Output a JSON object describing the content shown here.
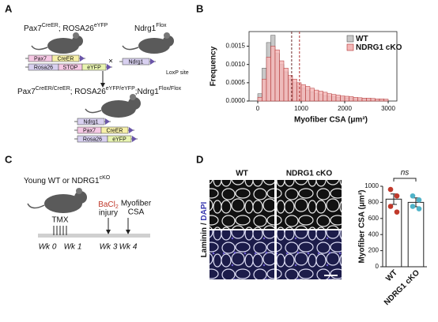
{
  "panel_letters": [
    "A",
    "B",
    "C",
    "D"
  ],
  "panel_a": {
    "genotype_1": [
      "Pax7",
      "CreER",
      "; ROSA26",
      "eYFP"
    ],
    "genotype_2": [
      "Ndrg1",
      "Flox"
    ],
    "cross": "×",
    "loxp": "LoxP site",
    "genotype_3": [
      "Pax7",
      "CreER/CreER",
      "; ROSA26",
      "eYFP/eYFP",
      ";Ndrg1",
      "Flox/Flox"
    ],
    "constructs": [
      [
        [
          {
            "label": "Pax7",
            "color": "#f6c8e4"
          },
          {
            "label": "CreER",
            "color": "#f7f0a8"
          }
        ],
        [
          {
            "label": "Rosa26",
            "color": "#d8d0f0"
          },
          {
            "label": "STOP",
            "color": "#f6c8e4"
          },
          {
            "label": "eYFP",
            "color": "#e8f4b0"
          }
        ]
      ],
      [
        [
          {
            "label": "Ndrg1",
            "color": "#d8d0f0"
          }
        ]
      ],
      [
        [
          {
            "label": "Ndrg1",
            "color": "#d8d0f0"
          }
        ],
        [
          {
            "label": "Pax7",
            "color": "#f6c8e4"
          },
          {
            "label": "CreER",
            "color": "#f7f0a8"
          }
        ],
        [
          {
            "label": "Rosa26",
            "color": "#d8d0f0"
          },
          {
            "label": "eYFP",
            "color": "#e8f4b0"
          }
        ]
      ]
    ]
  },
  "panel_c": {
    "subject": [
      "Young WT or NDRG1",
      "cKO"
    ],
    "tmx": "TMX",
    "bacl": [
      "BaCl",
      "2"
    ],
    "injury": "injury",
    "readout_1": "Myofiber",
    "readout_2": "CSA",
    "weeks": [
      "Wk 0",
      "Wk 1",
      "Wk 3",
      "Wk 4"
    ]
  },
  "panel_d": {
    "columns": [
      "WT",
      "NDRG1 cKO"
    ],
    "stain": [
      "Laminin / ",
      "DAPI"
    ]
  },
  "chart_data": [
    {
      "type": "histogram",
      "xlabel": "Myofiber CSA (μm²)",
      "ylabel": "Frequency",
      "bins": [
        0,
        100,
        200,
        300,
        400,
        500,
        600,
        700,
        800,
        900,
        1000,
        1100,
        1200,
        1300,
        1400,
        1500,
        1600,
        1700,
        1800,
        1900,
        2000,
        2100,
        2200,
        2300,
        2400,
        2500,
        2600,
        2700,
        2800,
        2900,
        3000
      ],
      "series": [
        {
          "name": "WT",
          "color": "#c8c8c8",
          "edge": "#555555",
          "values": [
            0.0002,
            0.0009,
            0.0016,
            0.0018,
            0.0013,
            0.001,
            0.0008,
            0.0006,
            0.0005,
            0.0004,
            0.00035,
            0.0003,
            0.00025,
            0.0002,
            0.00018,
            0.00015,
            0.00013,
            0.00012,
            0.0001,
            9e-05,
            8e-05,
            7e-05,
            6e-05,
            5e-05,
            5e-05,
            4e-05,
            4e-05,
            3e-05,
            3e-05,
            3e-05
          ]
        },
        {
          "name": "NDRG1 cKO",
          "color": "#f4b8b8",
          "edge": "#b03030",
          "values": [
            0.0001,
            0.0006,
            0.0012,
            0.0015,
            0.0014,
            0.0011,
            0.0009,
            0.0007,
            0.0006,
            0.0005,
            0.00045,
            0.0004,
            0.00035,
            0.0003,
            0.00027,
            0.00024,
            0.0002,
            0.00018,
            0.00016,
            0.00014,
            0.00013,
            0.00012,
            0.0001,
            9e-05,
            8e-05,
            8e-05,
            7e-05,
            6e-05,
            6e-05,
            5e-05
          ]
        }
      ],
      "vlines": [
        {
          "value": 780,
          "color": "#6b2a2a"
        },
        {
          "value": 960,
          "color": "#b03030"
        }
      ],
      "xlim": [
        -200,
        3200
      ],
      "ylim": [
        0,
        0.0019
      ],
      "xticks": [
        0,
        1000,
        2000,
        3000
      ],
      "yticks": [
        {
          "value": 0,
          "label": "0.0000"
        },
        {
          "value": 0.0005,
          "label": "0.0005"
        },
        {
          "value": 0.001,
          "label": "0.0010"
        },
        {
          "value": 0.0015,
          "label": "0.0015"
        }
      ],
      "legend": "top-right"
    },
    {
      "type": "bar",
      "ylabel": "Myofiber CSA (μm²)",
      "annotation": "ns",
      "categories": [
        "WT",
        "NDRG1 cKO"
      ],
      "values": [
        840,
        800
      ],
      "errors": [
        65,
        55
      ],
      "points": [
        [
          960,
          880,
          750,
          680
        ],
        [
          880,
          830,
          750,
          720
        ]
      ],
      "point_colors": [
        "#c0392b",
        "#4fb3c8"
      ],
      "ylim": [
        0,
        1000
      ],
      "yticks": [
        0,
        200,
        400,
        600,
        800,
        1000
      ]
    }
  ]
}
